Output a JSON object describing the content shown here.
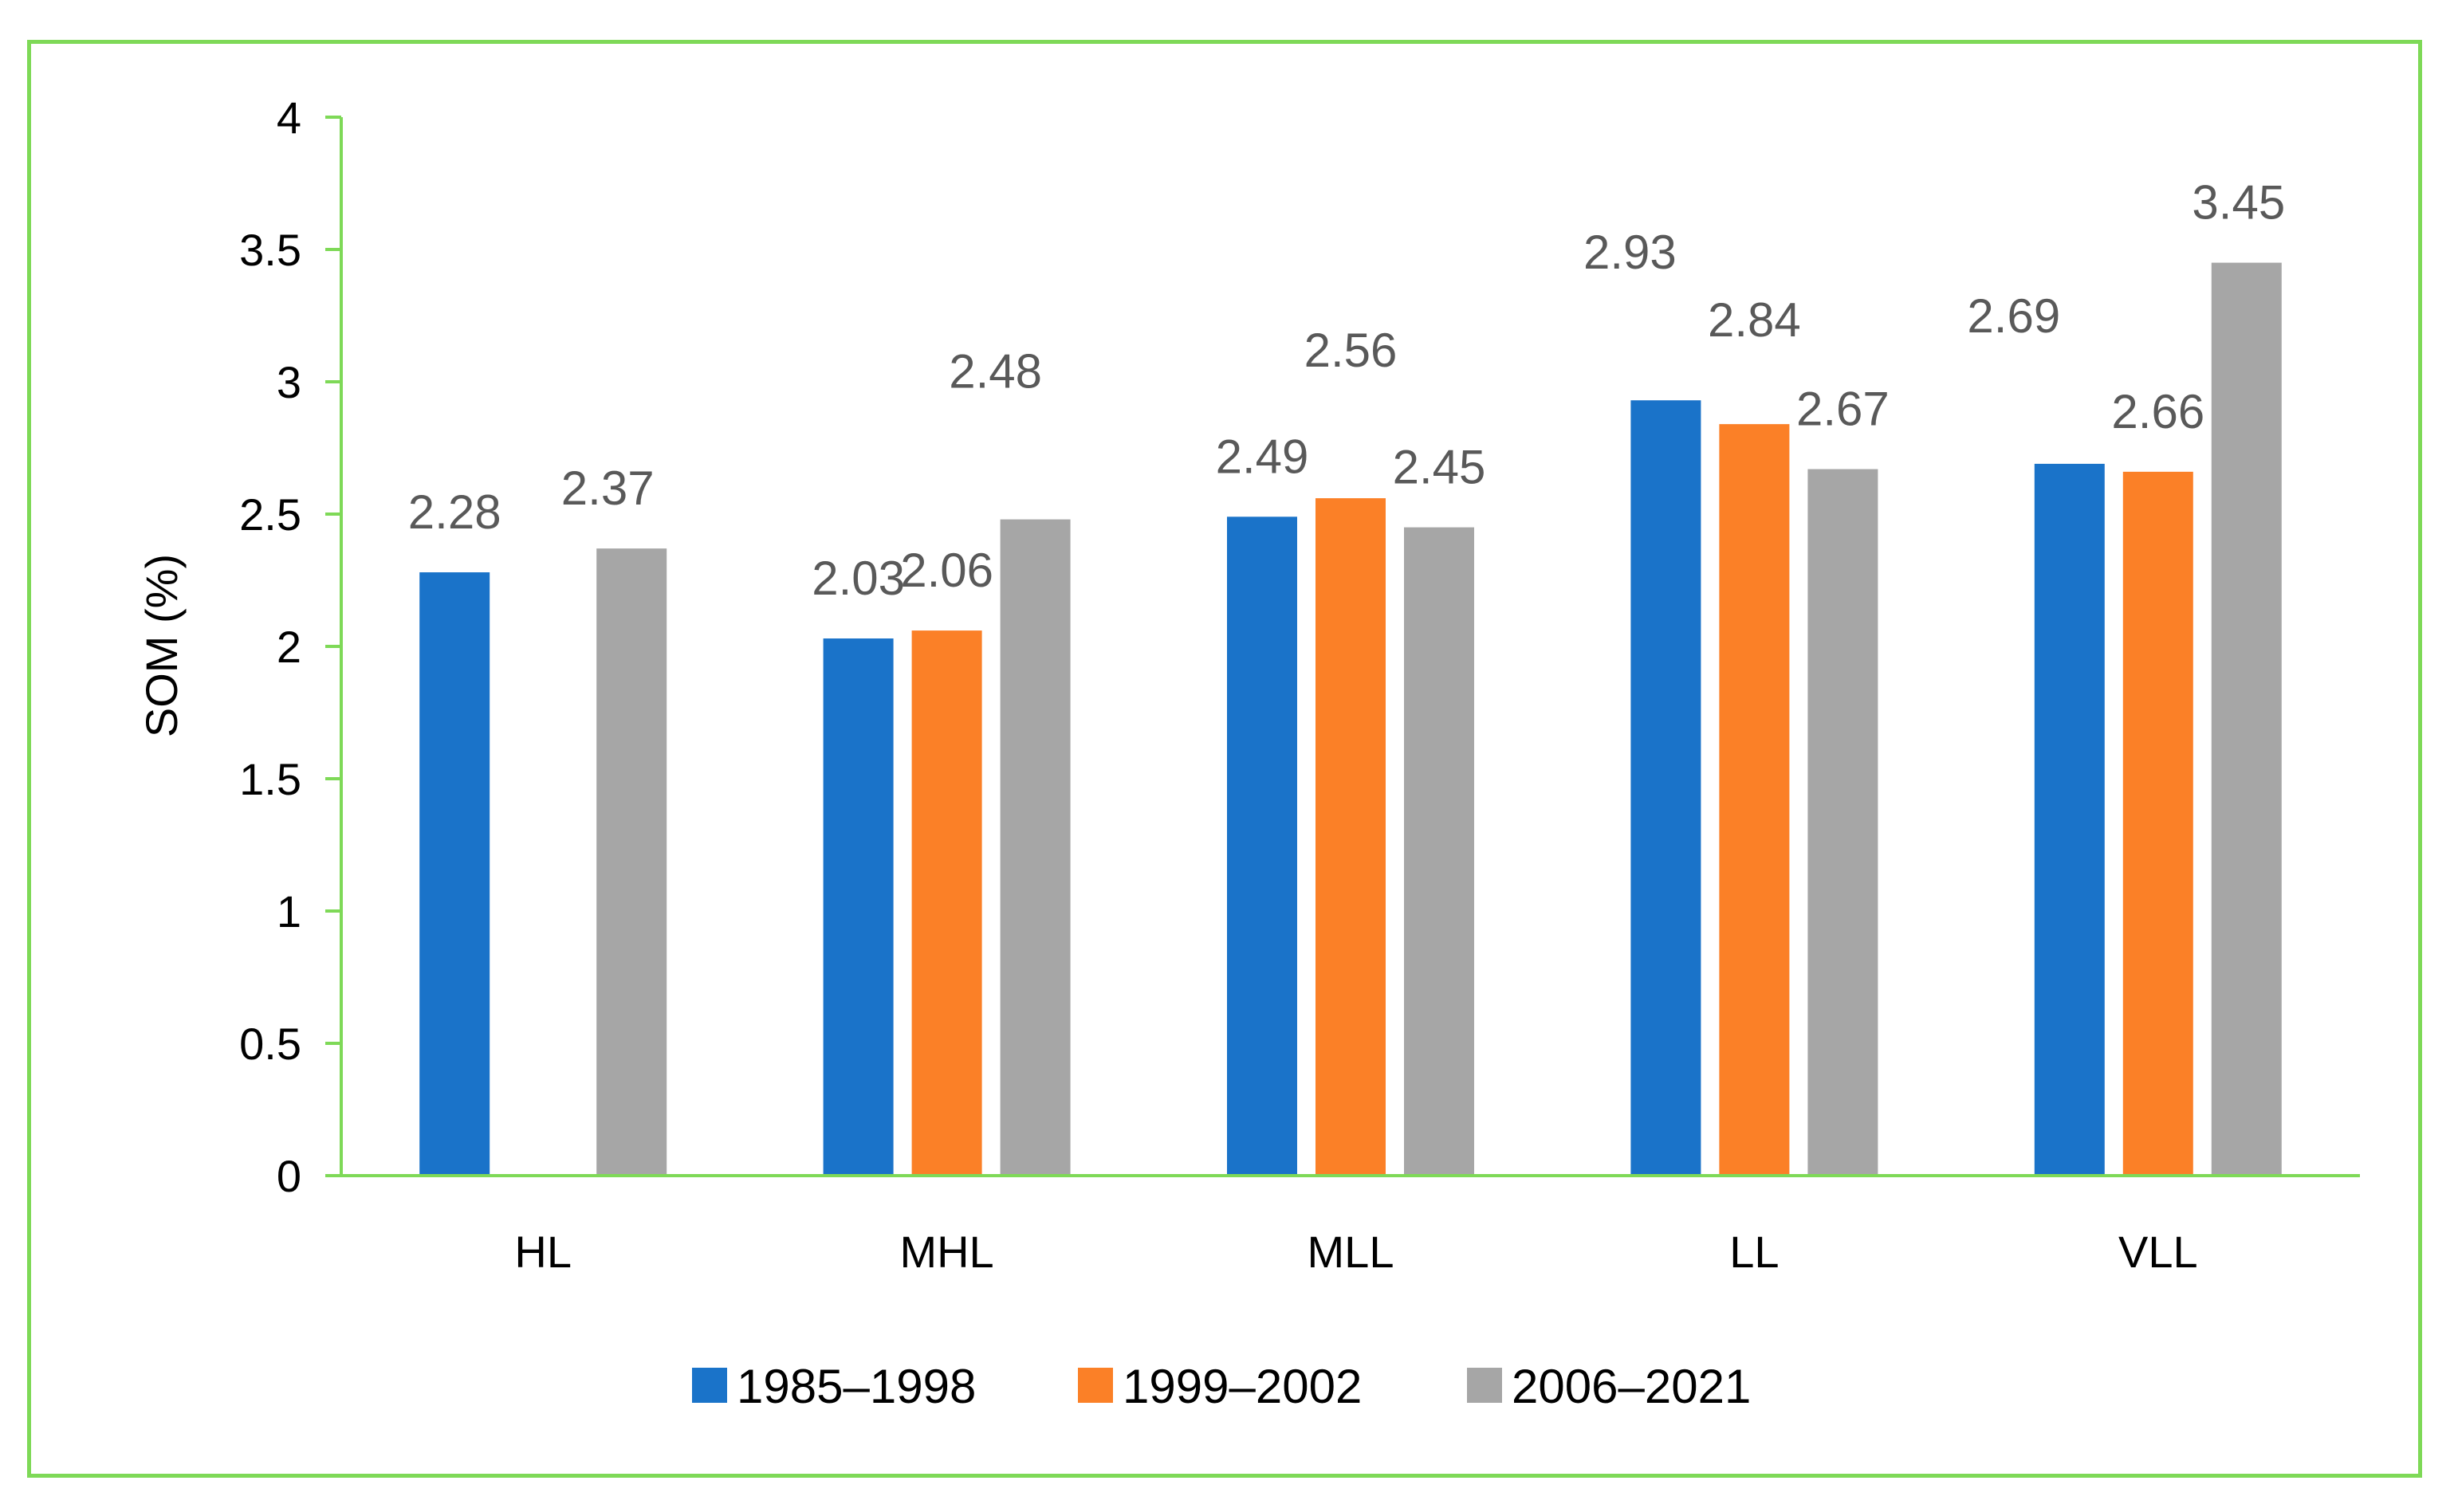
{
  "chart_data": {
    "type": "bar",
    "title": "",
    "xlabel": "",
    "ylabel": "SOM (%)",
    "ylim": [
      0,
      4
    ],
    "yticks": [
      "0",
      "0.5",
      "1",
      "1.5",
      "2",
      "2.5",
      "3",
      "3.5",
      "4"
    ],
    "categories": [
      "HL",
      "MHL",
      "MLL",
      "LL",
      "VLL"
    ],
    "series": [
      {
        "name": "1985–1998",
        "color": "#1a73c9",
        "values": [
          2.28,
          2.03,
          2.49,
          2.93,
          2.69
        ],
        "labels": [
          "2.28",
          "2.03",
          "2.49",
          "2.93",
          "2.69"
        ]
      },
      {
        "name": "1999–2002",
        "color": "#fb8027",
        "values": [
          null,
          2.06,
          2.56,
          2.84,
          2.66
        ],
        "labels": [
          "",
          "2.06",
          "2.56",
          "2.84",
          "2.66"
        ]
      },
      {
        "name": "2006–2021",
        "color": "#a6a6a6",
        "values": [
          2.37,
          2.48,
          2.45,
          2.67,
          3.45
        ],
        "labels": [
          "2.37",
          "2.48",
          "2.45",
          "2.67",
          "3.45"
        ]
      }
    ],
    "legend_position": "bottom-center",
    "grid": false,
    "frame_color": "#7ed957",
    "axis_color": "#7ed957"
  }
}
